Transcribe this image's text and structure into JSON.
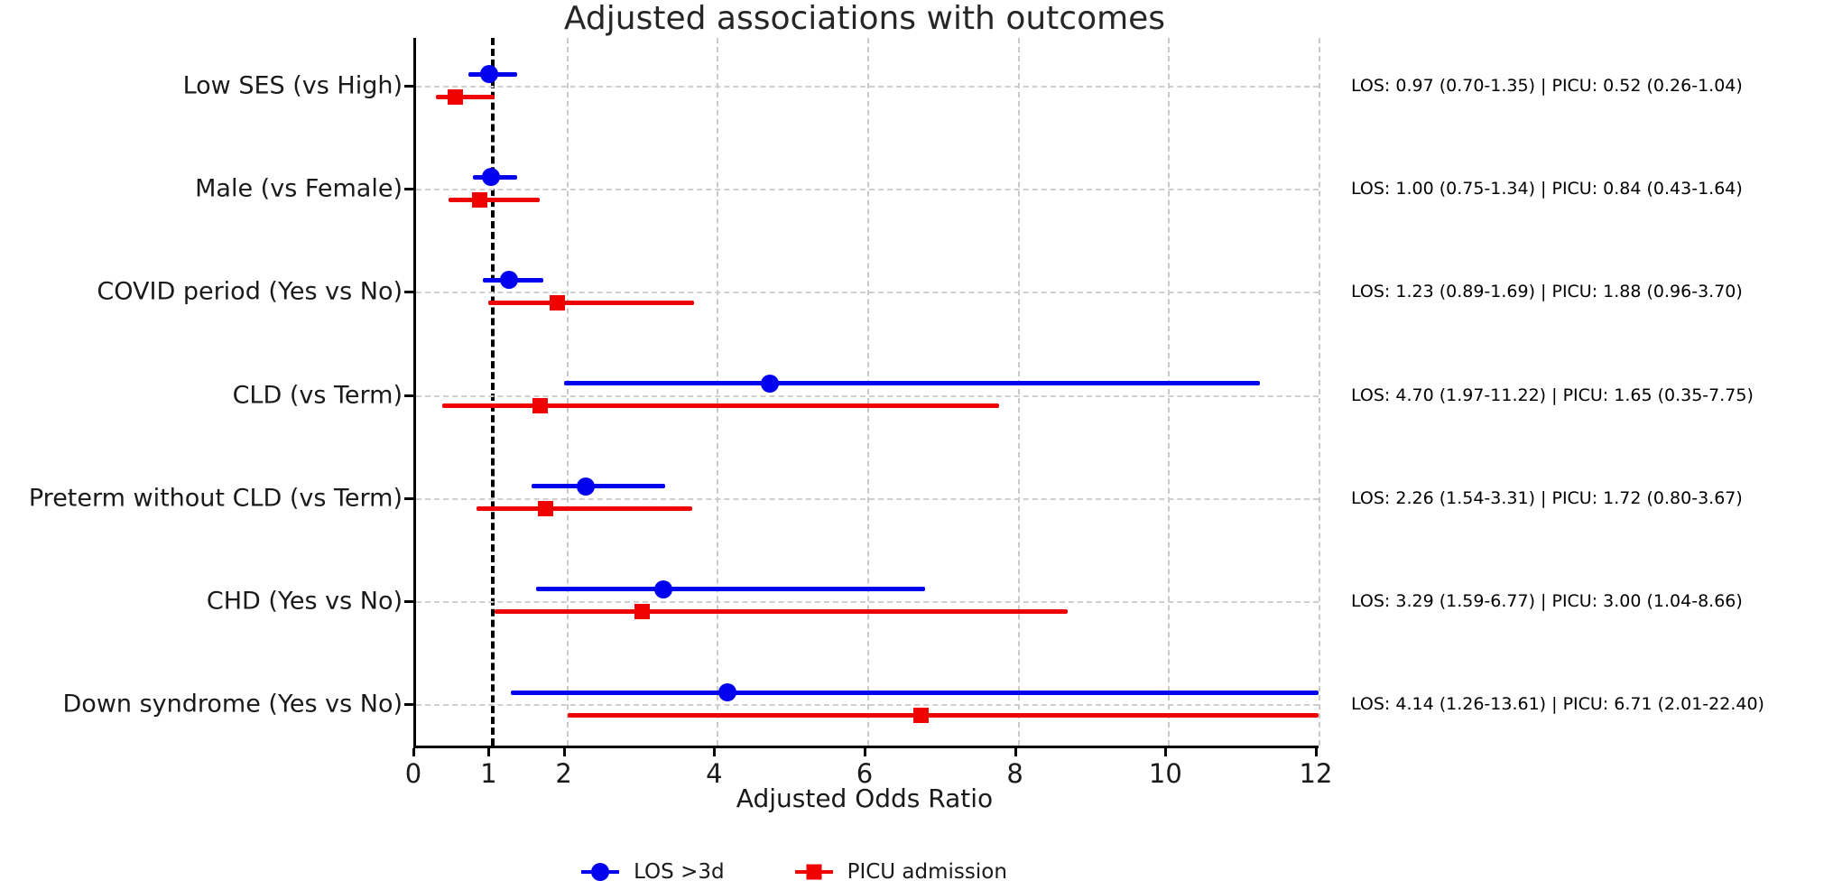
{
  "chart_data": {
    "type": "scatter",
    "subtype": "forest-plot",
    "title": "Adjusted associations with outcomes",
    "xlabel": "Adjusted Odds Ratio",
    "xlim": [
      0,
      12
    ],
    "xticks": [
      0,
      1,
      2,
      4,
      6,
      8,
      10,
      12
    ],
    "vertical_gridline_ticks": [
      2,
      4,
      6,
      8,
      10,
      12
    ],
    "reference_line_x": 1,
    "grid": true,
    "legend_position": "bottom-center",
    "series_meta": [
      {
        "name": "LOS >3d",
        "color": "#0202ee",
        "marker": "circle"
      },
      {
        "name": "PICU admission",
        "color": "#ee0202",
        "marker": "square"
      }
    ],
    "rows": [
      {
        "label": "Low SES (vs High)",
        "los": {
          "or": 0.97,
          "lo": 0.7,
          "hi": 1.35
        },
        "picu": {
          "or": 0.52,
          "lo": 0.26,
          "hi": 1.04
        },
        "annotation": "LOS: 0.97 (0.70-1.35) | PICU: 0.52 (0.26-1.04)"
      },
      {
        "label": "Male (vs Female)",
        "los": {
          "or": 1.0,
          "lo": 0.75,
          "hi": 1.34
        },
        "picu": {
          "or": 0.84,
          "lo": 0.43,
          "hi": 1.64
        },
        "annotation": "LOS: 1.00 (0.75-1.34) | PICU: 0.84 (0.43-1.64)"
      },
      {
        "label": "COVID period (Yes vs No)",
        "los": {
          "or": 1.23,
          "lo": 0.89,
          "hi": 1.69
        },
        "picu": {
          "or": 1.88,
          "lo": 0.96,
          "hi": 3.7
        },
        "annotation": "LOS: 1.23 (0.89-1.69) | PICU: 1.88 (0.96-3.70)"
      },
      {
        "label": "CLD (vs Term)",
        "los": {
          "or": 4.7,
          "lo": 1.97,
          "hi": 11.22
        },
        "picu": {
          "or": 1.65,
          "lo": 0.35,
          "hi": 7.75
        },
        "annotation": "LOS: 4.70 (1.97-11.22) | PICU: 1.65 (0.35-7.75)"
      },
      {
        "label": "Preterm without CLD (vs Term)",
        "los": {
          "or": 2.26,
          "lo": 1.54,
          "hi": 3.31
        },
        "picu": {
          "or": 1.72,
          "lo": 0.8,
          "hi": 3.67
        },
        "annotation": "LOS: 2.26 (1.54-3.31) | PICU: 1.72 (0.80-3.67)"
      },
      {
        "label": "CHD (Yes vs No)",
        "los": {
          "or": 3.29,
          "lo": 1.59,
          "hi": 6.77
        },
        "picu": {
          "or": 3.0,
          "lo": 1.04,
          "hi": 8.66
        },
        "annotation": "LOS: 3.29 (1.59-6.77) | PICU: 3.00 (1.04-8.66)"
      },
      {
        "label": "Down syndrome (Yes vs No)",
        "los": {
          "or": 4.14,
          "lo": 1.26,
          "hi": 13.61
        },
        "picu": {
          "or": 6.71,
          "lo": 2.01,
          "hi": 22.4
        },
        "annotation": "LOS: 4.14 (1.26-13.61) | PICU: 6.71 (2.01-22.40)"
      }
    ],
    "colors": {
      "los_series": "#0202ee",
      "picu_series": "#ee0202",
      "gridline": "#cccccc",
      "reference_line": "#000000",
      "axis": "#000000",
      "text": "#262626"
    }
  }
}
